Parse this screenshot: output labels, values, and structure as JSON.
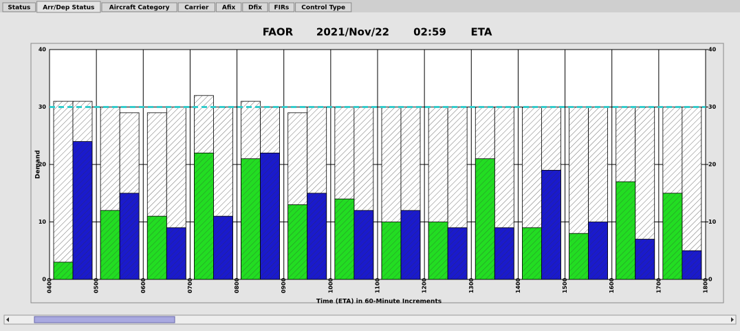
{
  "tabs": [
    "Status",
    "Arr/Dep Status",
    "Aircraft Category",
    "Carrier",
    "Afix",
    "Dfix",
    "FIRs",
    "Control Type"
  ],
  "active_tab": 1,
  "chart_data": {
    "type": "bar",
    "title": [
      "FAOR",
      "2021/Nov/22",
      "02:59",
      "ETA"
    ],
    "xlabel": "Time (ETA) in 60-Minute Increments",
    "ylabel": "Demand",
    "xticks": [
      "0400",
      "0500",
      "0600",
      "0700",
      "0800",
      "0900",
      "1000",
      "1100",
      "1200",
      "1300",
      "1400",
      "1500",
      "1600",
      "1700",
      "1800"
    ],
    "ylim": [
      0,
      40
    ],
    "yticks": [
      0,
      10,
      20,
      30,
      40
    ],
    "y2lim": [
      0,
      40
    ],
    "y2ticks": [
      0,
      10,
      20,
      30,
      40
    ],
    "grid": true,
    "threshold": 30,
    "threshold_color": "#33cccc",
    "series": [
      {
        "color": "#ffffff",
        "slot": 0,
        "values": [
          31,
          30,
          29,
          32,
          31,
          29,
          30,
          30,
          30,
          30,
          30,
          30,
          30,
          30
        ]
      },
      {
        "color": "#ffffff",
        "slot": 1,
        "values": [
          31,
          29,
          30,
          30,
          30,
          30,
          30,
          30,
          30,
          30,
          30,
          30,
          30,
          30
        ]
      },
      {
        "color": "#22dd22",
        "slot": 0,
        "values": [
          3,
          12,
          11,
          22,
          21,
          13,
          14,
          10,
          10,
          21,
          9,
          8,
          17,
          15
        ]
      },
      {
        "color": "#1a1acc",
        "slot": 1,
        "values": [
          24,
          15,
          9,
          11,
          22,
          15,
          12,
          12,
          9,
          9,
          19,
          10,
          7,
          5
        ]
      }
    ]
  }
}
